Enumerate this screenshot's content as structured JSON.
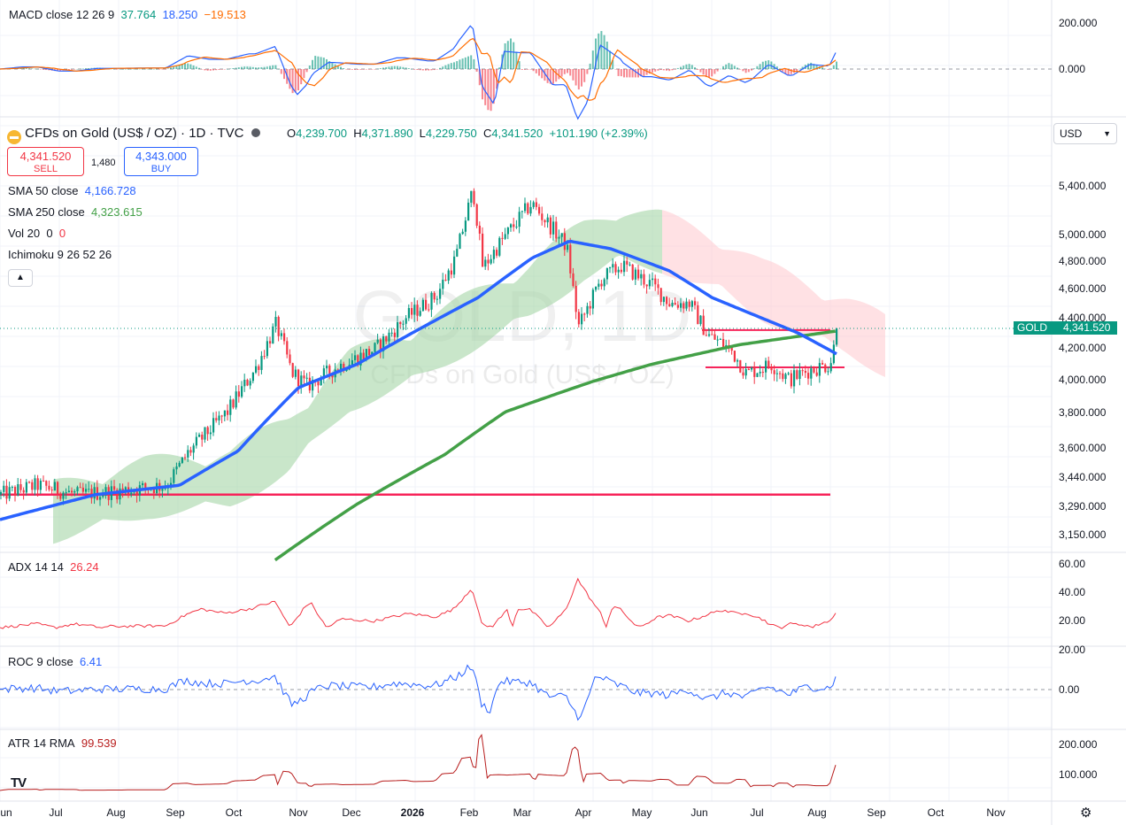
{
  "colors": {
    "up": "#089981",
    "down": "#f23645",
    "sma50": "#2962ff",
    "sma250": "#43a047",
    "macd_line": "#2962ff",
    "macd_signal": "#ff6d00",
    "adx": "#f23645",
    "roc": "#2962ff",
    "atr": "#b71c1c",
    "hline": "#f7245a",
    "cloud_bull": "#a5d6a7",
    "cloud_bear": "#ffcdd2",
    "grid": "#f0f3fa"
  },
  "header": {
    "symbol_title": "CFDs on Gold (US$ / OZ) · 1D · TVC",
    "open_label": "O",
    "open": "4,239.700",
    "high_label": "H",
    "high": "4,371.890",
    "low_label": "L",
    "low": "4,229.750",
    "close_label": "C",
    "close": "4,341.520",
    "change": "+101.190 (+2.39%)"
  },
  "trade": {
    "sell_price": "4,341.520",
    "sell_label": "SELL",
    "spread": "1,480",
    "buy_price": "4,343.000",
    "buy_label": "BUY"
  },
  "indicators": {
    "sma50_name": "SMA 50 close",
    "sma50_value": "4,166.728",
    "sma250_name": "SMA 250 close",
    "sma250_value": "4,323.615",
    "vol_name": "Vol 20",
    "vol_value_a": "0",
    "vol_value_b": "0",
    "ichimoku_name": "Ichimoku 9 26 52 26"
  },
  "macd": {
    "name": "MACD close 12 26 9",
    "v1": "37.764",
    "v2": "18.250",
    "v3": "−19.513"
  },
  "adx": {
    "name": "ADX 14 14",
    "value": "26.24"
  },
  "roc": {
    "name": "ROC 9 close",
    "value": "6.41"
  },
  "atr": {
    "name": "ATR 14 RMA",
    "value": "99.539"
  },
  "watermark": {
    "ticker": "GOLD, 1D",
    "description": "CFDs on Gold (US$ / OZ)"
  },
  "price_label": {
    "ticker": "GOLD",
    "value": "4,341.520"
  },
  "currency": "USD",
  "axes": {
    "main_ticks": [
      "5,400.000",
      "5,000.000",
      "4,800.000",
      "4,600.000",
      "4,400.000",
      "4,200.000",
      "4,000.000",
      "3,800.000",
      "3,600.000",
      "3,440.000",
      "3,290.000",
      "3,150.000"
    ],
    "macd_ticks": [
      "200.000",
      "0.000"
    ],
    "adx_ticks": [
      "60.00",
      "40.00",
      "20.00"
    ],
    "roc_ticks": [
      "20.00",
      "0.00"
    ],
    "atr_ticks": [
      "200.000",
      "100.000"
    ],
    "time_labels": [
      "Jun",
      "Jul",
      "Aug",
      "Sep",
      "Oct",
      "Nov",
      "Dec",
      "2026",
      "Feb",
      "Mar",
      "Apr",
      "May",
      "Jun",
      "Jul",
      "Aug",
      "Sep",
      "Oct",
      "Nov"
    ]
  },
  "chart_data": {
    "type": "candlestick",
    "symbol": "GOLD",
    "timeframe": "1D",
    "price_keypoints": [
      [
        "2025-06-01",
        3330
      ],
      [
        "2025-06-20",
        3380
      ],
      [
        "2025-07-10",
        3330
      ],
      [
        "2025-08-01",
        3350
      ],
      [
        "2025-08-25",
        3380
      ],
      [
        "2025-09-05",
        3560
      ],
      [
        "2025-09-25",
        3800
      ],
      [
        "2025-10-10",
        4080
      ],
      [
        "2025-10-20",
        4370
      ],
      [
        "2025-10-28",
        4050
      ],
      [
        "2025-11-05",
        3960
      ],
      [
        "2025-11-20",
        4080
      ],
      [
        "2025-12-10",
        4200
      ],
      [
        "2025-12-26",
        4420
      ],
      [
        "2026-01-10",
        4570
      ],
      [
        "2026-01-20",
        4850
      ],
      [
        "2026-01-29",
        5420
      ],
      [
        "2026-02-03",
        4780
      ],
      [
        "2026-02-12",
        4980
      ],
      [
        "2026-02-28",
        5300
      ],
      [
        "2026-03-05",
        5200
      ],
      [
        "2026-03-18",
        4950
      ],
      [
        "2026-03-24",
        4350
      ],
      [
        "2026-04-05",
        4700
      ],
      [
        "2026-04-15",
        4800
      ],
      [
        "2026-05-01",
        4650
      ],
      [
        "2026-05-10",
        4520
      ],
      [
        "2026-05-20",
        4520
      ],
      [
        "2026-05-29",
        4300
      ],
      [
        "2026-06-10",
        4200
      ],
      [
        "2026-06-18",
        4040
      ],
      [
        "2026-07-01",
        4100
      ],
      [
        "2026-07-10",
        4000
      ],
      [
        "2026-07-20",
        4060
      ],
      [
        "2026-07-31",
        4100
      ],
      [
        "2026-08-04",
        4340
      ]
    ],
    "sma50_keypoints": [
      [
        "2025-06-01",
        3200
      ],
      [
        "2025-07-20",
        3330
      ],
      [
        "2025-09-01",
        3380
      ],
      [
        "2025-10-01",
        3570
      ],
      [
        "2025-11-01",
        3950
      ],
      [
        "2025-12-01",
        4100
      ],
      [
        "2026-01-01",
        4330
      ],
      [
        "2026-02-01",
        4560
      ],
      [
        "2026-03-01",
        4860
      ],
      [
        "2026-03-20",
        4990
      ],
      [
        "2026-04-10",
        4930
      ],
      [
        "2026-05-10",
        4760
      ],
      [
        "2026-06-01",
        4560
      ],
      [
        "2026-06-20",
        4450
      ],
      [
        "2026-07-15",
        4310
      ],
      [
        "2026-08-04",
        4167
      ]
    ],
    "sma250_keypoints": [
      [
        "2025-10-20",
        3000
      ],
      [
        "2025-12-01",
        3280
      ],
      [
        "2026-01-15",
        3550
      ],
      [
        "2026-02-15",
        3800
      ],
      [
        "2026-04-01",
        3990
      ],
      [
        "2026-05-01",
        4100
      ],
      [
        "2026-06-15",
        4230
      ],
      [
        "2026-08-04",
        4324
      ]
    ],
    "horizontal_lines": [
      3330,
      4330,
      4080
    ],
    "current_price": 4341.52
  }
}
